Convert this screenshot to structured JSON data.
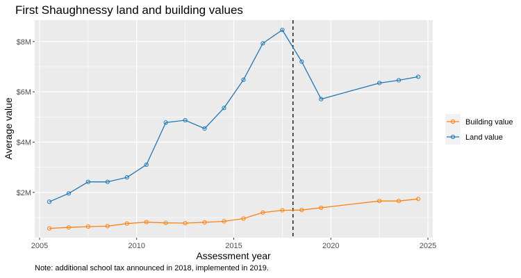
{
  "chart_data": {
    "type": "line",
    "title": "First Shaughnessy land and building values",
    "xlabel": "Assessment year",
    "ylabel": "Average value",
    "caption": "Note: additional school tax announced in 2018, implemented in 2019.",
    "xlim": [
      2004.75,
      2025.25
    ],
    "ylim": [
      0.2,
      8.85
    ],
    "x_ticks": [
      2005,
      2010,
      2015,
      2020,
      2025
    ],
    "y_ticks": [
      {
        "value": 2,
        "label": "$2M"
      },
      {
        "value": 4,
        "label": "$4M"
      },
      {
        "value": 6,
        "label": "$6M"
      },
      {
        "value": 8,
        "label": "$8M"
      }
    ],
    "vline": {
      "x": 2018.05,
      "style": "dashed"
    },
    "grid": true,
    "legend_position": "right",
    "series": [
      {
        "name": "Building value",
        "color": "#ff7f0e",
        "x": [
          2005.5,
          2006.5,
          2007.5,
          2008.5,
          2009.5,
          2010.5,
          2011.5,
          2012.5,
          2013.5,
          2014.5,
          2015.5,
          2016.5,
          2017.5,
          2018.5,
          2019.5,
          2022.5,
          2023.5,
          2024.5
        ],
        "y": [
          0.57,
          0.61,
          0.64,
          0.66,
          0.76,
          0.82,
          0.79,
          0.78,
          0.81,
          0.85,
          0.96,
          1.2,
          1.29,
          1.3,
          1.39,
          1.66,
          1.66,
          1.74
        ]
      },
      {
        "name": "Land value",
        "color": "#1f77b4",
        "x": [
          2005.5,
          2006.5,
          2007.5,
          2008.5,
          2009.5,
          2010.5,
          2011.5,
          2012.5,
          2013.5,
          2014.5,
          2015.5,
          2016.5,
          2017.5,
          2018.5,
          2019.5,
          2022.5,
          2023.5,
          2024.5
        ],
        "y": [
          1.63,
          1.96,
          2.42,
          2.42,
          2.6,
          3.1,
          4.78,
          4.87,
          4.54,
          5.36,
          6.48,
          7.93,
          8.46,
          7.2,
          5.71,
          6.35,
          6.46,
          6.6
        ]
      }
    ],
    "legend_order": [
      "Building value",
      "Land value"
    ]
  }
}
